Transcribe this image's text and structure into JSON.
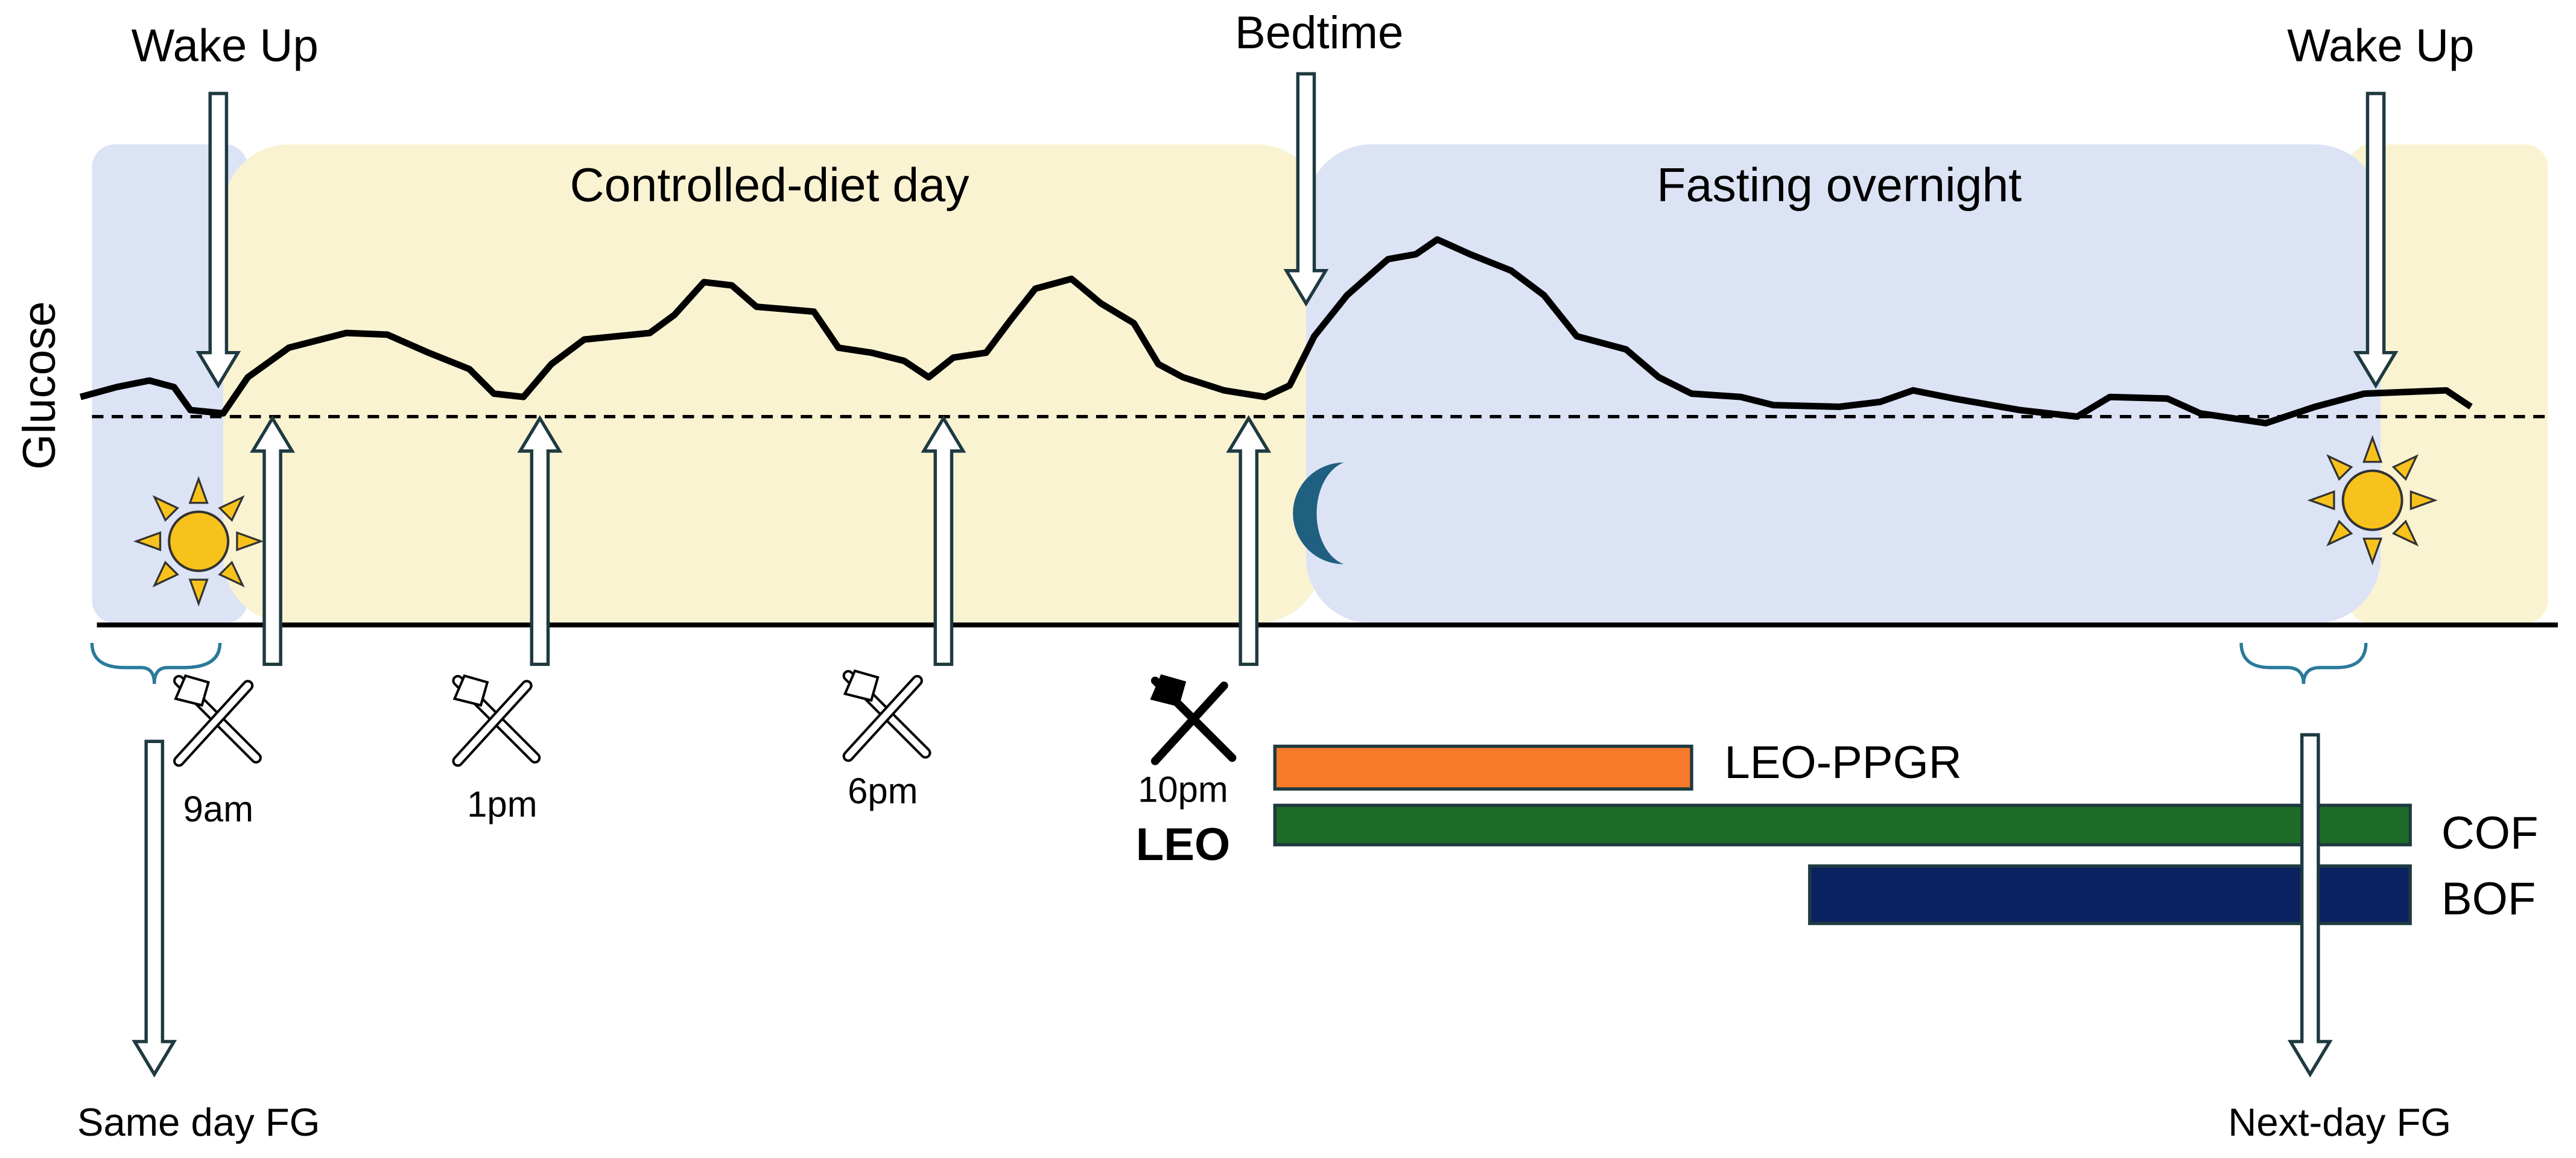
{
  "y_axis_label": "Glucose",
  "phases": [
    {
      "label": "Controlled-diet day"
    },
    {
      "label": "Fasting overnight"
    }
  ],
  "events": [
    {
      "label": "Wake Up"
    },
    {
      "label": "Bedtime"
    },
    {
      "label": "Wake Up"
    }
  ],
  "meals": [
    {
      "time": "9am"
    },
    {
      "time": "1pm"
    },
    {
      "time": "6pm"
    },
    {
      "time": "10pm",
      "label": "LEO"
    }
  ],
  "windows": [
    {
      "label": "LEO-PPGR"
    },
    {
      "label": "COF"
    },
    {
      "label": "BOF"
    }
  ],
  "outcomes": [
    {
      "label": "Same day FG"
    },
    {
      "label": "Next-day FG"
    }
  ]
}
